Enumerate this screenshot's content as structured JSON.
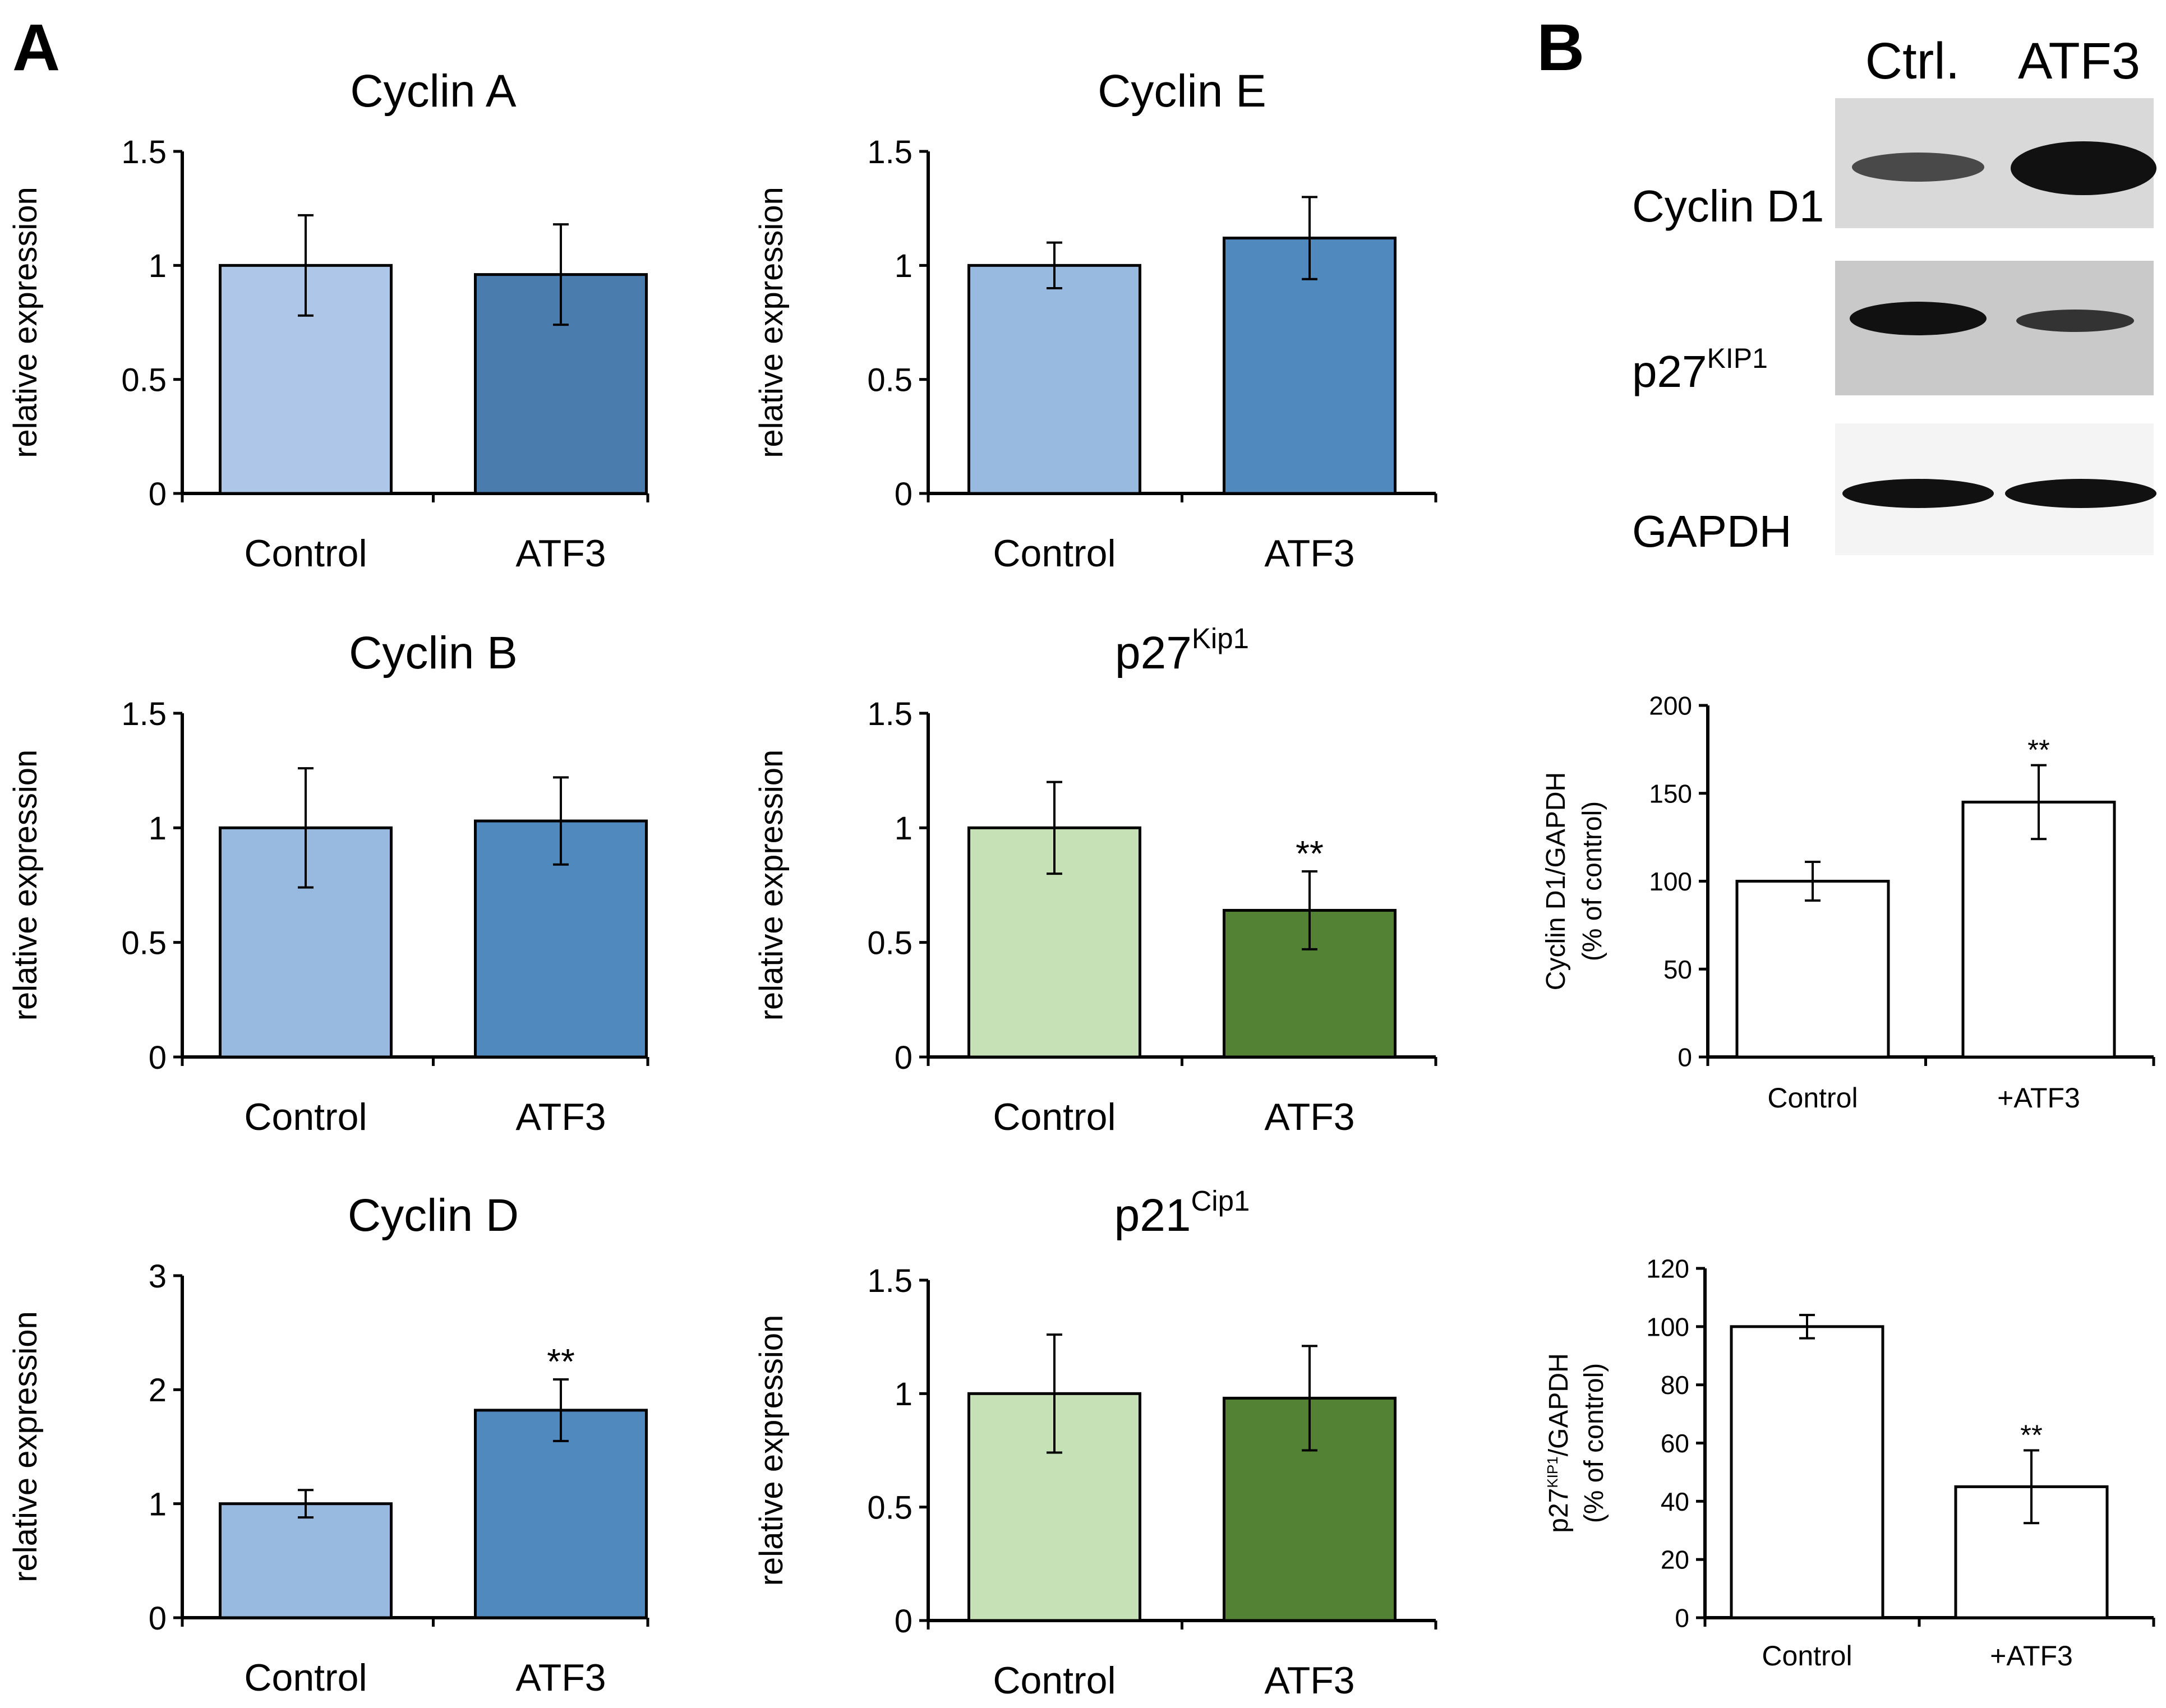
{
  "panel_labels": {
    "a": "A",
    "b": "B"
  },
  "colors": {
    "blue_light": "#aec7e8",
    "blue_light2": "#99bae0",
    "blue_dark": "#4a7dae",
    "blue_mid": "#4f89be",
    "green_light": "#c5e1b5",
    "green_dark": "#548235",
    "white": "#ffffff",
    "axis": "#000000"
  },
  "western_blot": {
    "lanes": [
      "Ctrl.",
      "ATF3"
    ],
    "rows": [
      {
        "label": "Cyclin D1",
        "superscript": ""
      },
      {
        "label": "p27",
        "superscript": "KIP1"
      },
      {
        "label": "GAPDH",
        "superscript": ""
      }
    ]
  },
  "chart_data": [
    {
      "type": "bar",
      "title": "Cyclin A",
      "title_sup": "",
      "categories": [
        "Control",
        "ATF3"
      ],
      "values": [
        1.0,
        0.96
      ],
      "errors": [
        0.22,
        0.22
      ],
      "significance": [
        "",
        ""
      ],
      "ylabel": "relative expression",
      "ylim": [
        0,
        1.5
      ],
      "yticks": [
        0,
        0.5,
        1,
        1.5
      ],
      "ytick_labels": [
        "0",
        "0.5",
        "1",
        "1.5"
      ],
      "bar_colors": [
        "#aec7e8",
        "#4a7dae"
      ]
    },
    {
      "type": "bar",
      "title": "Cyclin E",
      "title_sup": "",
      "categories": [
        "Control",
        "ATF3"
      ],
      "values": [
        1.0,
        1.12
      ],
      "errors": [
        0.1,
        0.18
      ],
      "significance": [
        "",
        ""
      ],
      "ylabel": "relative expression",
      "ylim": [
        0,
        1.5
      ],
      "yticks": [
        0,
        0.5,
        1,
        1.5
      ],
      "ytick_labels": [
        "0",
        "0.5",
        "1",
        "1.5"
      ],
      "bar_colors": [
        "#99bae0",
        "#4f89be"
      ]
    },
    {
      "type": "bar",
      "title": "Cyclin B",
      "title_sup": "",
      "categories": [
        "Control",
        "ATF3"
      ],
      "values": [
        1.0,
        1.03
      ],
      "errors": [
        0.26,
        0.19
      ],
      "significance": [
        "",
        ""
      ],
      "ylabel": "relative expression",
      "ylim": [
        0,
        1.5
      ],
      "yticks": [
        0,
        0.5,
        1,
        1.5
      ],
      "ytick_labels": [
        "0",
        "0.5",
        "1",
        "1.5"
      ],
      "bar_colors": [
        "#99bae0",
        "#4f89be"
      ]
    },
    {
      "type": "bar",
      "title": "p27",
      "title_sup": "Kip1",
      "categories": [
        "Control",
        "ATF3"
      ],
      "values": [
        1.0,
        0.64
      ],
      "errors": [
        0.2,
        0.17
      ],
      "significance": [
        "",
        "**"
      ],
      "ylabel": "relative expression",
      "ylim": [
        0,
        1.5
      ],
      "yticks": [
        0,
        0.5,
        1,
        1.5
      ],
      "ytick_labels": [
        "0",
        "0.5",
        "1",
        "1.5"
      ],
      "bar_colors": [
        "#c5e1b5",
        "#548235"
      ]
    },
    {
      "type": "bar",
      "title": "Cyclin D",
      "title_sup": "",
      "categories": [
        "Control",
        "ATF3"
      ],
      "values": [
        1.0,
        1.82
      ],
      "errors": [
        0.12,
        0.27
      ],
      "significance": [
        "",
        "**"
      ],
      "ylabel": "relative expression",
      "ylim": [
        0,
        3
      ],
      "yticks": [
        0,
        1,
        2,
        3
      ],
      "ytick_labels": [
        "0",
        "1",
        "2",
        "3"
      ],
      "bar_colors": [
        "#99bae0",
        "#4f89be"
      ]
    },
    {
      "type": "bar",
      "title": "p21",
      "title_sup": "Cip1",
      "categories": [
        "Control",
        "ATF3"
      ],
      "values": [
        1.0,
        0.98
      ],
      "errors": [
        0.26,
        0.23
      ],
      "significance": [
        "",
        ""
      ],
      "ylabel": "relative expression",
      "ylim": [
        0,
        1.5
      ],
      "yticks": [
        0,
        0.5,
        1,
        1.5
      ],
      "ytick_labels": [
        "0",
        "0.5",
        "1",
        "1.5"
      ],
      "bar_colors": [
        "#c5e1b5",
        "#548235"
      ]
    },
    {
      "type": "bar",
      "title": "",
      "title_sup": "",
      "categories": [
        "Control",
        "+ATF3"
      ],
      "values": [
        100,
        145
      ],
      "errors": [
        11,
        21
      ],
      "significance": [
        "",
        "**"
      ],
      "ylabel": "Cyclin D1/GAPDH",
      "ylabel2": "(% of control)",
      "ylabel_sup": "",
      "ylabel_rest": "",
      "ylim": [
        0,
        200
      ],
      "yticks": [
        0,
        50,
        100,
        150,
        200
      ],
      "ytick_labels": [
        "0",
        "50",
        "100",
        "150",
        "200"
      ],
      "bar_colors": [
        "#ffffff",
        "#ffffff"
      ]
    },
    {
      "type": "bar",
      "title": "",
      "title_sup": "",
      "categories": [
        "Control",
        "+ATF3"
      ],
      "values": [
        100,
        45
      ],
      "errors": [
        4,
        12.5
      ],
      "significance": [
        "",
        "**"
      ],
      "ylabel": "p27",
      "ylabel_sup": "KIP1",
      "ylabel_rest": "/GAPDH",
      "ylabel2": "(% of control)",
      "ylim": [
        0,
        120
      ],
      "yticks": [
        0,
        20,
        40,
        60,
        80,
        100,
        120
      ],
      "ytick_labels": [
        "0",
        "20",
        "40",
        "60",
        "80",
        "100",
        "120"
      ],
      "bar_colors": [
        "#ffffff",
        "#ffffff"
      ]
    }
  ]
}
